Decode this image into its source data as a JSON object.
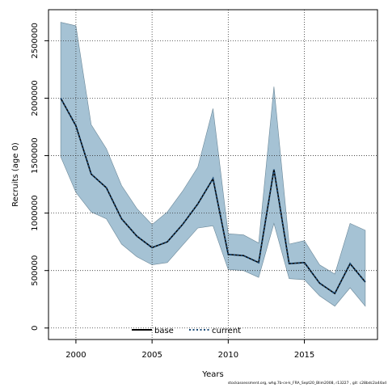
{
  "chart_data": {
    "type": "line",
    "title": "",
    "xlabel": "Years",
    "ylabel": "Recruits (age 0)",
    "xlim": [
      1998.2,
      2019.8
    ],
    "ylim": [
      -100000,
      2770000
    ],
    "x_ticks": [
      2000,
      2005,
      2010,
      2015
    ],
    "x_tick_labels": [
      "2000",
      "2005",
      "2010",
      "2015"
    ],
    "y_ticks": [
      0,
      500000,
      1000000,
      1500000,
      2000000,
      2500000
    ],
    "y_tick_labels": [
      "0",
      "500000",
      "1000000",
      "1500000",
      "2000000",
      "2500000"
    ],
    "grid": true,
    "legend_position": "bottom",
    "x": [
      1999,
      2000,
      2001,
      2002,
      2003,
      2004,
      2005,
      2006,
      2007,
      2008,
      2009,
      2010,
      2011,
      2012,
      2013,
      2014,
      2015,
      2016,
      2017,
      2018,
      2019
    ],
    "series": [
      {
        "name": "base",
        "style": "solid",
        "color": "#000000",
        "values": [
          2000000,
          1760000,
          1340000,
          1220000,
          950000,
          800000,
          700000,
          750000,
          900000,
          1080000,
          1300000,
          640000,
          630000,
          570000,
          1380000,
          560000,
          570000,
          390000,
          300000,
          560000,
          400000
        ]
      },
      {
        "name": "current",
        "style": "dotted",
        "color": "#1f4e79",
        "values": [
          2000000,
          1760000,
          1340000,
          1220000,
          950000,
          800000,
          700000,
          750000,
          900000,
          1080000,
          1300000,
          640000,
          630000,
          570000,
          1380000,
          560000,
          570000,
          390000,
          300000,
          560000,
          400000
        ]
      }
    ],
    "band": {
      "color": "#a5c2d4",
      "upper": [
        2660000,
        2630000,
        1770000,
        1560000,
        1240000,
        1040000,
        900000,
        1010000,
        1190000,
        1400000,
        1910000,
        820000,
        810000,
        740000,
        2100000,
        730000,
        760000,
        550000,
        470000,
        910000,
        850000
      ],
      "lower": [
        1490000,
        1180000,
        1010000,
        950000,
        730000,
        620000,
        550000,
        570000,
        720000,
        870000,
        890000,
        510000,
        500000,
        440000,
        910000,
        430000,
        420000,
        280000,
        190000,
        350000,
        190000
      ]
    }
  },
  "footer": "stockassessment.org, whg.7b-ce-k_FRA_Sept20_Blim2008, r13227 , git: c28bdc2a44ad"
}
